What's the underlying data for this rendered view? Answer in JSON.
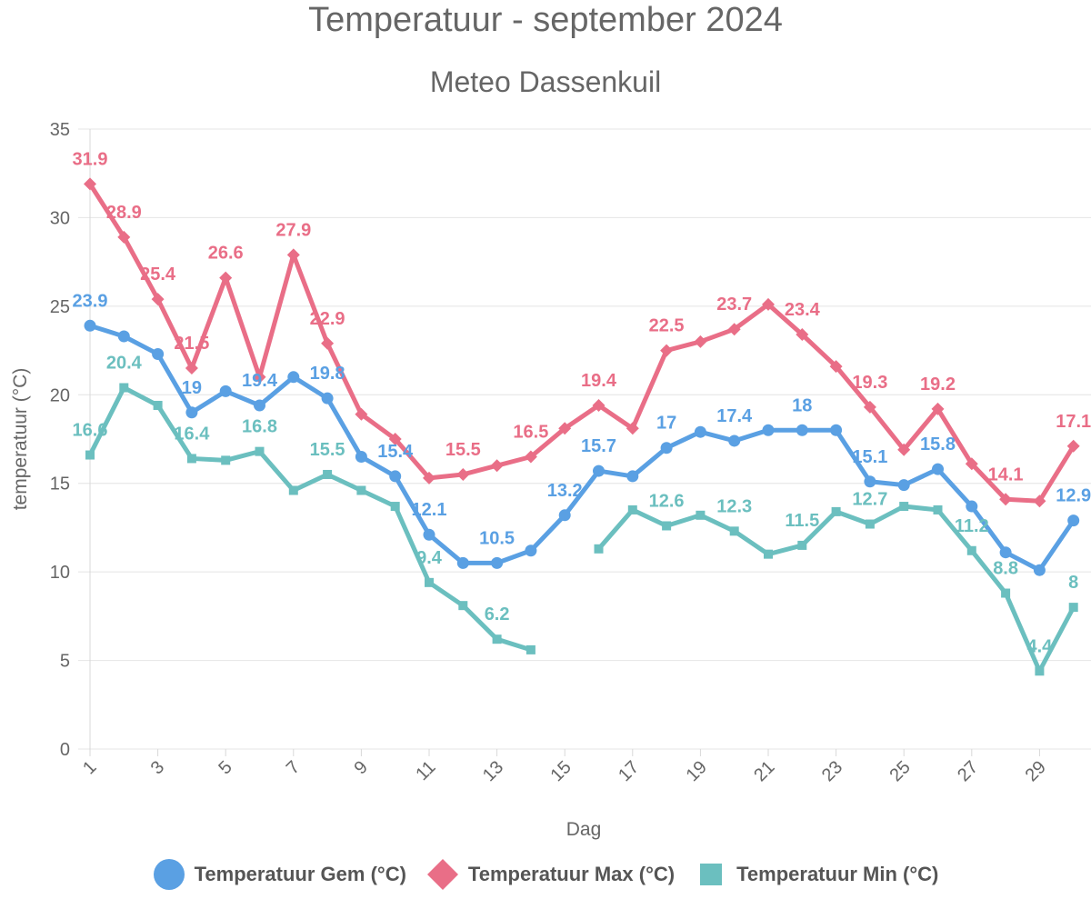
{
  "chart_data": {
    "type": "line",
    "title": "Temperatuur - september 2024",
    "subtitle": "Meteo Dassenkuil",
    "xlabel": "Dag",
    "ylabel": "temperatuur (°C)",
    "ylim": [
      0,
      35
    ],
    "yticks": [
      0,
      5,
      10,
      15,
      20,
      25,
      30,
      35
    ],
    "xticks": [
      1,
      3,
      5,
      7,
      9,
      11,
      13,
      15,
      17,
      19,
      21,
      23,
      25,
      27,
      29
    ],
    "x": [
      1,
      2,
      3,
      4,
      5,
      6,
      7,
      8,
      9,
      10,
      11,
      12,
      13,
      14,
      15,
      16,
      17,
      18,
      19,
      20,
      21,
      22,
      23,
      24,
      25,
      26,
      27,
      28,
      29,
      30
    ],
    "grid": true,
    "legend_position": "bottom",
    "series": [
      {
        "name": "Temperatuur Gem (°C)",
        "color": "#5aa0e3",
        "marker": "circle",
        "values": [
          23.9,
          23.3,
          22.3,
          19,
          20.2,
          19.4,
          21,
          19.8,
          16.5,
          15.4,
          12.1,
          10.5,
          10.5,
          11.2,
          13.2,
          15.7,
          15.4,
          17,
          17.9,
          17.4,
          18,
          18,
          18,
          15.1,
          14.9,
          15.8,
          13.7,
          11.1,
          10.1,
          12.9
        ],
        "labels": [
          "23.9",
          null,
          null,
          "19",
          null,
          "19.4",
          null,
          "19.8",
          null,
          "15.4",
          "12.1",
          null,
          "10.5",
          null,
          "13.2",
          "15.7",
          null,
          "17",
          null,
          "17.4",
          null,
          "18",
          null,
          "15.1",
          null,
          "15.8",
          null,
          null,
          null,
          "12.9"
        ]
      },
      {
        "name": "Temperatuur Max (°C)",
        "color": "#e96e87",
        "marker": "diamond",
        "values": [
          31.9,
          28.9,
          25.4,
          21.5,
          26.6,
          21,
          27.9,
          22.9,
          18.9,
          17.5,
          15.3,
          15.5,
          16,
          16.5,
          18.1,
          19.4,
          18.1,
          22.5,
          23,
          23.7,
          25.1,
          23.4,
          21.6,
          19.3,
          16.9,
          19.2,
          16.1,
          14.1,
          14,
          17.1
        ],
        "labels": [
          "31.9",
          "28.9",
          "25.4",
          "21.5",
          "26.6",
          null,
          "27.9",
          "22.9",
          null,
          null,
          null,
          "15.5",
          null,
          "16.5",
          null,
          "19.4",
          null,
          "22.5",
          null,
          "23.7",
          null,
          "23.4",
          null,
          "19.3",
          null,
          "19.2",
          null,
          "14.1",
          null,
          "17.1"
        ]
      },
      {
        "name": "Temperatuur Min (°C)",
        "color": "#6bbfbf",
        "marker": "square",
        "values": [
          16.6,
          20.4,
          19.4,
          16.4,
          16.3,
          16.8,
          14.6,
          15.5,
          14.6,
          13.7,
          9.4,
          8.1,
          6.2,
          5.6,
          null,
          11.3,
          13.5,
          12.6,
          13.2,
          12.3,
          11,
          11.5,
          13.4,
          12.7,
          13.7,
          13.5,
          11.2,
          8.8,
          4.4,
          8
        ],
        "labels": [
          "16.6",
          "20.4",
          null,
          "16.4",
          null,
          "16.8",
          null,
          "15.5",
          null,
          null,
          "9.4",
          null,
          "6.2",
          null,
          null,
          null,
          null,
          "12.6",
          null,
          "12.3",
          null,
          "11.5",
          null,
          "12.7",
          null,
          null,
          "11.2",
          "8.8",
          "4.4",
          "8"
        ]
      }
    ]
  }
}
